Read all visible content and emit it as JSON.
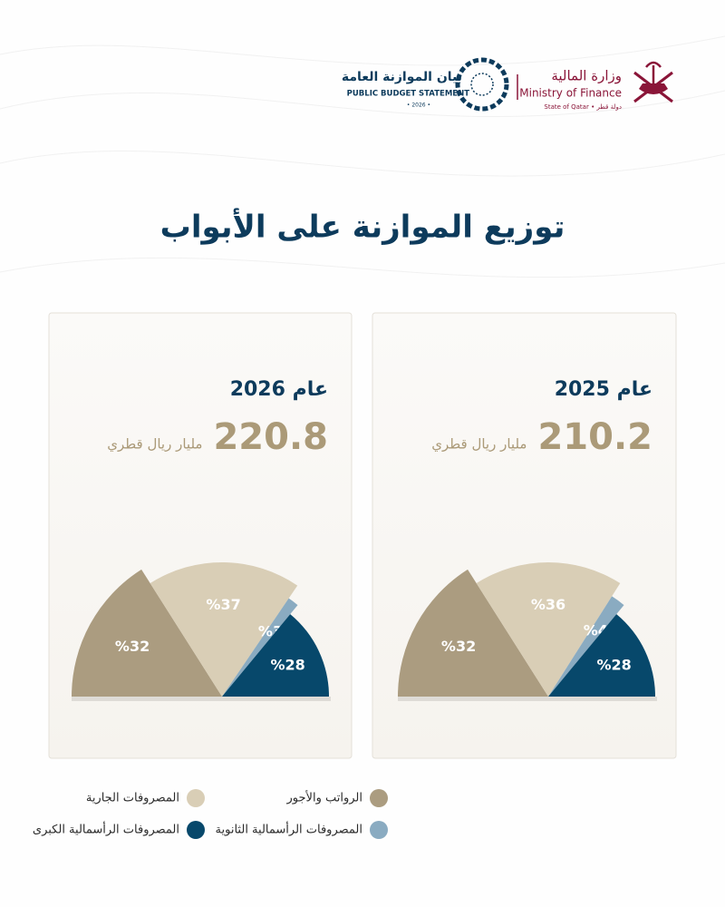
{
  "header": {
    "budget_logo_ar": "بيان الموازنة العامة",
    "budget_logo_en": "PUBLIC BUDGET STATEMENT",
    "budget_logo_year": "• 2026 •",
    "ministry_ar": "وزارة المالية",
    "ministry_en": "Ministry of Finance",
    "state": "State of Qatar • دولة قطر"
  },
  "title": "توزيع الموازنة على الأبواب",
  "chart_data": [
    {
      "type": "half-rose",
      "title": "عام 2025",
      "total": 210.2,
      "total_unit": "مليار ريال قطري",
      "categories": [
        "الرواتب والأجور",
        "المصروفات الجارية",
        "المصروفات الرأسمالية الثانوية",
        "المصروفات الرأسمالية الكبرى"
      ],
      "values": [
        32,
        36,
        4,
        28
      ],
      "value_labels": [
        "%32",
        "%36",
        "%4",
        "%28"
      ],
      "colors": [
        "#ab9c80",
        "#d9ceb6",
        "#8aabc1",
        "#07486b"
      ]
    },
    {
      "type": "half-rose",
      "title": "عام 2026",
      "total": 220.8,
      "total_unit": "مليار ريال قطري",
      "categories": [
        "الرواتب والأجور",
        "المصروفات الجارية",
        "المصروفات الرأسمالية الثانوية",
        "المصروفات الرأسمالية الكبرى"
      ],
      "values": [
        32,
        37,
        3,
        28
      ],
      "value_labels": [
        "%32",
        "%37",
        "%3",
        "%28"
      ],
      "colors": [
        "#ab9c80",
        "#d9ceb6",
        "#8aabc1",
        "#07486b"
      ]
    }
  ]
}
